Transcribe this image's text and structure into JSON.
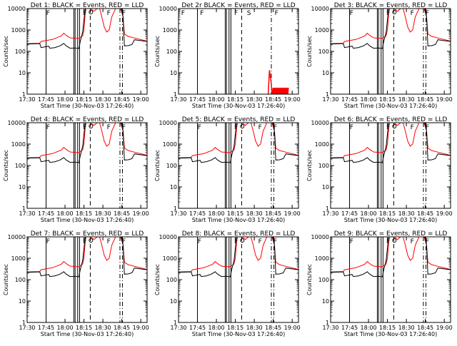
{
  "figure": {
    "y_label": "Counts/sec",
    "x_label": "Start Time (30-Nov-03 17:26:40)",
    "series_colors": {
      "events": "#000000",
      "lld": "#ff0000"
    },
    "y_ticks": [
      "1",
      "10",
      "100",
      "1000",
      "10000"
    ],
    "x_ticks": [
      "17:30",
      "17:45",
      "18:00",
      "18:15",
      "18:30",
      "18:45",
      "19:00"
    ]
  },
  "chart_data": [
    {
      "type": "line",
      "title": "Det 1: BLACK = Events, RED = LLD",
      "detector": 1,
      "shape": "normal",
      "flags": [
        "F",
        "F",
        "F",
        "F"
      ]
    },
    {
      "type": "line",
      "title": "Det 2r BLACK = Events, RED = LLD",
      "detector": 2,
      "shape": "det2",
      "flags": [
        "F",
        "F",
        "F",
        "S",
        "F"
      ]
    },
    {
      "type": "line",
      "title": "Det 3: BLACK = Events, RED = LLD",
      "detector": 3,
      "shape": "normal",
      "flags": [
        "F",
        "F",
        "F",
        "F"
      ]
    },
    {
      "type": "line",
      "title": "Det 4: BLACK = Events, RED = LLD",
      "detector": 4,
      "shape": "normal",
      "flags": [
        "F",
        "F",
        "F",
        "F"
      ]
    },
    {
      "type": "line",
      "title": "Det 5: BLACK = Events, RED = LLD",
      "detector": 5,
      "shape": "normal",
      "flags": [
        "F",
        "F",
        "F",
        "F"
      ]
    },
    {
      "type": "line",
      "title": "Det 6: BLACK = Events, RED = LLD",
      "detector": 6,
      "shape": "normal",
      "flags": [
        "F",
        "F",
        "F",
        "F"
      ]
    },
    {
      "type": "line",
      "title": "Det 7: BLACK = Events, RED = LLD",
      "detector": 7,
      "shape": "normal",
      "flags": [
        "F",
        "F",
        "F",
        "F"
      ]
    },
    {
      "type": "line",
      "title": "Det 8: BLACK = Events, RED = LLD",
      "detector": 8,
      "shape": "normal",
      "flags": [
        "F",
        "F",
        "F",
        "F"
      ]
    },
    {
      "type": "line",
      "title": "Det 9: BLACK = Events, RED = LLD",
      "detector": 9,
      "shape": "normal",
      "flags": [
        "F",
        "F",
        "F",
        "F"
      ]
    }
  ]
}
